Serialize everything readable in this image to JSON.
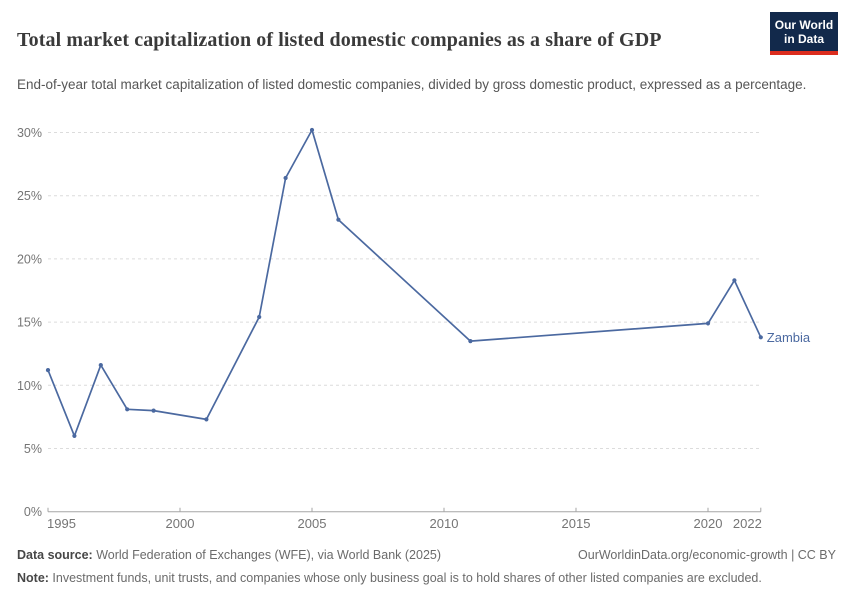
{
  "header": {
    "title": "Total market capitalization of listed domestic companies as a share of GDP",
    "subtitle": "End-of-year total market capitalization of listed domestic companies, divided by gross domestic product, expressed as a percentage."
  },
  "logo": {
    "line1": "Our World",
    "line2": "in Data",
    "bg_color": "#12294b",
    "bar_color": "#dc2d1e"
  },
  "chart_data": {
    "type": "line",
    "title": "Total market capitalization of listed domestic companies as a share of GDP",
    "entity": "Zambia",
    "unit": "%",
    "line_color": "#4b69a0",
    "grid_color": "#dcdcdc",
    "axis_color": "#a6a6a6",
    "tick_label_color": "#757575",
    "x": [
      1995,
      1996,
      1997,
      1998,
      1999,
      2001,
      2003,
      2004,
      2005,
      2006,
      2011,
      2020,
      2021,
      2022
    ],
    "values": [
      11.2,
      6.0,
      11.6,
      8.1,
      8.0,
      7.3,
      15.4,
      26.4,
      30.2,
      23.1,
      13.5,
      14.9,
      18.3,
      13.8
    ],
    "xlim": [
      1995,
      2022
    ],
    "ylim": [
      0,
      30
    ],
    "xticks": [
      1995,
      2000,
      2005,
      2010,
      2015,
      2020,
      2022
    ],
    "yticks": [
      0,
      5,
      10,
      15,
      20,
      25,
      30
    ],
    "ytick_suffix": "%",
    "grid": "horizontal-dashed",
    "legend": "line-end-label"
  },
  "footer": {
    "datasource_label": "Data source:",
    "datasource_text": " World Federation of Exchanges (WFE), via World Bank (2025)",
    "link_text": "OurWorldinData.org/economic-growth | CC BY",
    "note_label": "Note:",
    "note_text": " Investment funds, unit trusts, and companies whose only business goal is to hold shares of other listed companies are excluded."
  }
}
